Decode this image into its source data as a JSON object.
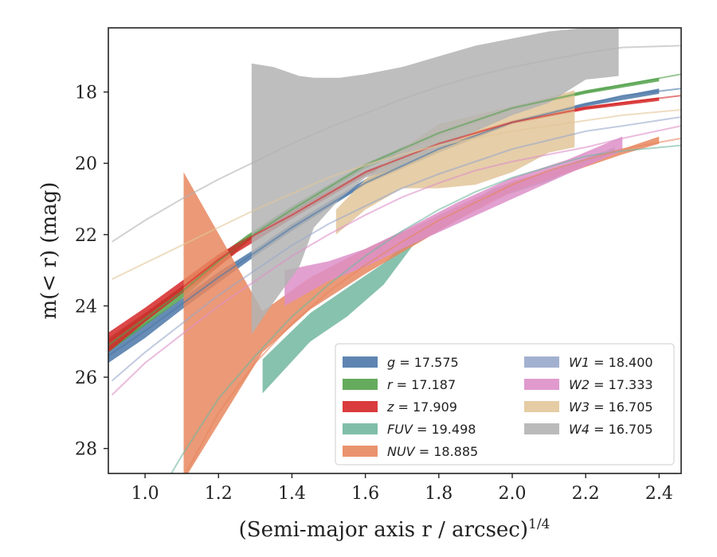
{
  "chart_data": {
    "type": "area",
    "xlabel": "(Semi-major axis r / arcsec)",
    "xlabel_exponent": "1/4",
    "ylabel": "m(< r) (mag)",
    "xlim": [
      0.9,
      2.46
    ],
    "ylim": [
      28.7,
      16.2
    ],
    "y_inverted": true,
    "x_ticks": [
      1.0,
      1.2,
      1.4,
      1.6,
      1.8,
      2.0,
      2.2,
      2.4
    ],
    "x_tick_labels": [
      "1.0",
      "1.2",
      "1.4",
      "1.6",
      "1.8",
      "2.0",
      "2.2",
      "2.4"
    ],
    "y_ticks": [
      18,
      20,
      22,
      24,
      26,
      28
    ],
    "y_tick_labels": [
      "18",
      "20",
      "22",
      "24",
      "26",
      "28"
    ],
    "legend_position": "lower-right",
    "legend_columns": 2,
    "series": [
      {
        "name": "g",
        "total": "17.575",
        "color": "#4c78a8",
        "band": [
          [
            0.9,
            25.2,
            25.6
          ],
          [
            1.0,
            24.5,
            24.9
          ],
          [
            1.1,
            23.8,
            24.1
          ],
          [
            1.2,
            23.05,
            23.35
          ],
          [
            1.3,
            22.4,
            22.6
          ],
          [
            1.4,
            21.7,
            21.9
          ],
          [
            1.6,
            20.45,
            20.6
          ],
          [
            1.8,
            19.55,
            19.7
          ],
          [
            2.0,
            18.8,
            18.9
          ],
          [
            2.2,
            18.3,
            18.4
          ],
          [
            2.4,
            17.9,
            18.05
          ]
        ],
        "fit": [
          [
            0.9,
            25.4
          ],
          [
            1.0,
            24.7
          ],
          [
            1.1,
            23.95
          ],
          [
            1.2,
            23.2
          ],
          [
            1.3,
            22.5
          ],
          [
            1.4,
            21.8
          ],
          [
            1.6,
            20.55
          ],
          [
            1.8,
            19.6
          ],
          [
            2.0,
            18.85
          ],
          [
            2.2,
            18.35
          ],
          [
            2.3,
            18.1
          ],
          [
            2.46,
            17.9
          ]
        ]
      },
      {
        "name": "r",
        "total": "17.187",
        "color": "#54a24b",
        "band": [
          [
            0.9,
            24.9,
            25.3
          ],
          [
            1.0,
            24.2,
            24.55
          ],
          [
            1.1,
            23.45,
            23.8
          ],
          [
            1.2,
            22.6,
            22.9
          ],
          [
            1.28,
            22.0,
            22.2
          ],
          [
            1.4,
            21.2,
            21.4
          ],
          [
            1.6,
            20.0,
            20.15
          ],
          [
            1.8,
            19.1,
            19.25
          ],
          [
            2.0,
            18.4,
            18.5
          ],
          [
            2.2,
            17.95,
            18.05
          ],
          [
            2.4,
            17.6,
            17.7
          ]
        ],
        "fit": [
          [
            0.9,
            25.1
          ],
          [
            1.0,
            24.35
          ],
          [
            1.1,
            23.6
          ],
          [
            1.2,
            22.75
          ],
          [
            1.28,
            22.1
          ],
          [
            1.4,
            21.3
          ],
          [
            1.6,
            20.05
          ],
          [
            1.8,
            19.15
          ],
          [
            2.0,
            18.45
          ],
          [
            2.2,
            18.0
          ],
          [
            2.3,
            17.8
          ],
          [
            2.46,
            17.5
          ]
        ]
      },
      {
        "name": "z",
        "total": "17.909",
        "color": "#d62728",
        "band": [
          [
            0.9,
            24.75,
            25.3
          ],
          [
            1.0,
            24.05,
            24.45
          ],
          [
            1.1,
            23.3,
            23.65
          ],
          [
            1.2,
            22.55,
            22.9
          ],
          [
            1.25,
            22.25,
            22.5
          ],
          [
            1.4,
            21.35,
            21.55
          ],
          [
            1.6,
            20.2,
            20.35
          ],
          [
            1.8,
            19.4,
            19.55
          ],
          [
            2.0,
            18.8,
            18.9
          ],
          [
            2.2,
            18.4,
            18.5
          ],
          [
            2.4,
            18.15,
            18.25
          ]
        ],
        "fit": [
          [
            0.9,
            25.0
          ],
          [
            1.0,
            24.25
          ],
          [
            1.1,
            23.5
          ],
          [
            1.2,
            22.7
          ],
          [
            1.3,
            22.0
          ],
          [
            1.4,
            21.45
          ],
          [
            1.6,
            20.25
          ],
          [
            1.8,
            19.45
          ],
          [
            2.0,
            18.85
          ],
          [
            2.2,
            18.45
          ],
          [
            2.3,
            18.3
          ],
          [
            2.46,
            18.1
          ]
        ]
      },
      {
        "name": "FUV",
        "total": "19.498",
        "color": "#72b7a0",
        "band": [
          [
            1.32,
            25.5,
            26.45
          ],
          [
            1.45,
            24.2,
            25.0
          ],
          [
            1.55,
            23.5,
            24.3
          ],
          [
            1.65,
            22.8,
            23.4
          ],
          [
            1.73,
            22.0,
            22.3
          ],
          [
            1.85,
            21.3,
            21.6
          ],
          [
            1.95,
            20.7,
            21.0
          ],
          [
            2.1,
            20.2,
            20.5
          ],
          [
            2.2,
            19.85,
            20.0
          ],
          [
            2.28,
            19.55,
            19.7
          ]
        ],
        "fit": [
          [
            1.06,
            28.9
          ],
          [
            1.1,
            28.2
          ],
          [
            1.2,
            26.6
          ],
          [
            1.3,
            25.4
          ],
          [
            1.4,
            24.3
          ],
          [
            1.5,
            23.4
          ],
          [
            1.6,
            22.6
          ],
          [
            1.7,
            21.9
          ],
          [
            1.8,
            21.3
          ],
          [
            1.9,
            20.8
          ],
          [
            2.0,
            20.4
          ],
          [
            2.1,
            20.1
          ],
          [
            2.2,
            19.8
          ],
          [
            2.3,
            19.65
          ],
          [
            2.46,
            19.5
          ]
        ]
      },
      {
        "name": "NUV",
        "total": "18.885",
        "color": "#e8875f",
        "band": [
          [
            1.105,
            20.25,
            28.9
          ],
          [
            1.32,
            24.15,
            25.3
          ],
          [
            1.45,
            23.2,
            24.1
          ],
          [
            1.6,
            22.4,
            23.1
          ],
          [
            1.75,
            21.7,
            22.2
          ],
          [
            1.85,
            21.2,
            21.6
          ],
          [
            2.0,
            20.5,
            20.8
          ],
          [
            2.2,
            19.95,
            20.1
          ],
          [
            2.3,
            19.6,
            19.75
          ],
          [
            2.4,
            19.25,
            19.45
          ]
        ],
        "fit": [
          [
            1.1,
            28.9
          ],
          [
            1.2,
            27.0
          ],
          [
            1.3,
            25.6
          ],
          [
            1.4,
            24.5
          ],
          [
            1.5,
            23.6
          ],
          [
            1.6,
            22.85
          ],
          [
            1.7,
            22.2
          ],
          [
            1.8,
            21.6
          ],
          [
            1.9,
            21.1
          ],
          [
            2.0,
            20.6
          ],
          [
            2.1,
            20.2
          ],
          [
            2.2,
            19.9
          ],
          [
            2.3,
            19.6
          ],
          [
            2.46,
            19.3
          ]
        ]
      },
      {
        "name": "W1",
        "total": "18.400",
        "color": "#99a8cc",
        "band": [],
        "fit": [
          [
            0.91,
            26.1
          ],
          [
            1.0,
            25.3
          ],
          [
            1.1,
            24.5
          ],
          [
            1.2,
            23.7
          ],
          [
            1.3,
            23.0
          ],
          [
            1.4,
            22.3
          ],
          [
            1.5,
            21.7
          ],
          [
            1.6,
            21.2
          ],
          [
            1.7,
            20.7
          ],
          [
            1.8,
            20.3
          ],
          [
            1.9,
            19.95
          ],
          [
            2.0,
            19.6
          ],
          [
            2.1,
            19.35
          ],
          [
            2.2,
            19.1
          ],
          [
            2.3,
            18.95
          ],
          [
            2.46,
            18.7
          ]
        ]
      },
      {
        "name": "W2",
        "total": "17.333",
        "color": "#dd8fc8",
        "band": [
          [
            1.38,
            23.0,
            24.0
          ],
          [
            1.5,
            22.75,
            23.3
          ],
          [
            1.6,
            22.4,
            22.9
          ],
          [
            1.7,
            21.9,
            22.4
          ],
          [
            1.85,
            21.1,
            21.7
          ],
          [
            2.0,
            20.4,
            21.0
          ],
          [
            2.15,
            19.9,
            20.3
          ],
          [
            2.3,
            19.25,
            19.65
          ]
        ],
        "fit": [
          [
            0.91,
            26.5
          ],
          [
            1.0,
            25.6
          ],
          [
            1.1,
            24.8
          ],
          [
            1.2,
            24.0
          ],
          [
            1.3,
            23.3
          ],
          [
            1.4,
            22.6
          ],
          [
            1.5,
            22.0
          ],
          [
            1.6,
            21.45
          ],
          [
            1.7,
            20.95
          ],
          [
            1.8,
            20.55
          ],
          [
            1.9,
            20.2
          ],
          [
            2.0,
            19.95
          ],
          [
            2.1,
            19.75
          ],
          [
            2.2,
            19.55
          ],
          [
            2.3,
            19.3
          ],
          [
            2.46,
            18.95
          ]
        ]
      },
      {
        "name": "W3",
        "total": "16.705",
        "color": "#e2c69a",
        "band": [
          [
            1.52,
            21.3,
            22.0
          ],
          [
            1.6,
            20.45,
            21.3
          ],
          [
            1.7,
            19.6,
            20.7
          ],
          [
            1.8,
            18.9,
            20.7
          ],
          [
            1.9,
            18.65,
            20.6
          ],
          [
            2.0,
            18.4,
            20.25
          ],
          [
            2.1,
            18.15,
            19.7
          ],
          [
            2.17,
            17.95,
            19.55
          ]
        ],
        "fit": [
          [
            0.91,
            23.25
          ],
          [
            1.0,
            22.8
          ],
          [
            1.1,
            22.3
          ],
          [
            1.2,
            21.8
          ],
          [
            1.3,
            21.3
          ],
          [
            1.4,
            20.85
          ],
          [
            1.5,
            20.4
          ],
          [
            1.6,
            20.05
          ],
          [
            1.7,
            19.75
          ],
          [
            1.8,
            19.5
          ],
          [
            1.9,
            19.3
          ],
          [
            2.0,
            19.1
          ],
          [
            2.1,
            18.95
          ],
          [
            2.2,
            18.8
          ],
          [
            2.3,
            18.65
          ],
          [
            2.46,
            18.5
          ]
        ]
      },
      {
        "name": "W4",
        "total": "16.705",
        "color": "#b3b3b3",
        "band": [
          [
            1.29,
            17.2,
            24.8
          ],
          [
            1.35,
            17.3,
            23.9
          ],
          [
            1.42,
            17.55,
            22.9
          ],
          [
            1.46,
            17.6,
            21.8
          ],
          [
            1.53,
            17.6,
            21.0
          ],
          [
            1.6,
            17.5,
            20.4
          ],
          [
            1.7,
            17.3,
            20.1
          ],
          [
            1.8,
            17.0,
            19.6
          ],
          [
            1.9,
            16.7,
            19.1
          ],
          [
            2.0,
            16.5,
            18.65
          ],
          [
            2.1,
            16.3,
            18.3
          ],
          [
            2.2,
            16.2,
            17.65
          ],
          [
            2.29,
            16.2,
            17.55
          ]
        ],
        "fit": [
          [
            0.91,
            22.2
          ],
          [
            1.0,
            21.6
          ],
          [
            1.1,
            21.0
          ],
          [
            1.2,
            20.45
          ],
          [
            1.3,
            19.95
          ],
          [
            1.4,
            19.45
          ],
          [
            1.5,
            19.0
          ],
          [
            1.6,
            18.6
          ],
          [
            1.7,
            18.2
          ],
          [
            1.8,
            17.85
          ],
          [
            1.9,
            17.55
          ],
          [
            2.0,
            17.3
          ],
          [
            2.1,
            17.1
          ],
          [
            2.2,
            16.9
          ],
          [
            2.3,
            16.75
          ],
          [
            2.46,
            16.7
          ]
        ]
      }
    ]
  }
}
